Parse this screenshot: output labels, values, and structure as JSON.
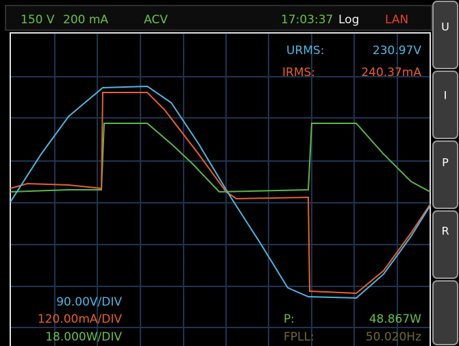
{
  "status": {
    "range_v": "150 V",
    "range_i": "200 mA",
    "mode": "ACV",
    "time": "17:03:37",
    "log": "Log",
    "lan": "LAN"
  },
  "softkeys": [
    "U",
    "I",
    "P",
    "R"
  ],
  "readings": {
    "urms_label": "URMS:",
    "urms_value": "230.97V",
    "irms_label": "IRMS:",
    "irms_value": "240.37mA",
    "p_label": "P:",
    "p_value": "48.867W",
    "fpll_label": "FPLL:",
    "fpll_value": "50.020Hz"
  },
  "scales": [
    "90.00V/DIV",
    "120.00mA/DIV",
    "18.000W/DIV"
  ]
}
